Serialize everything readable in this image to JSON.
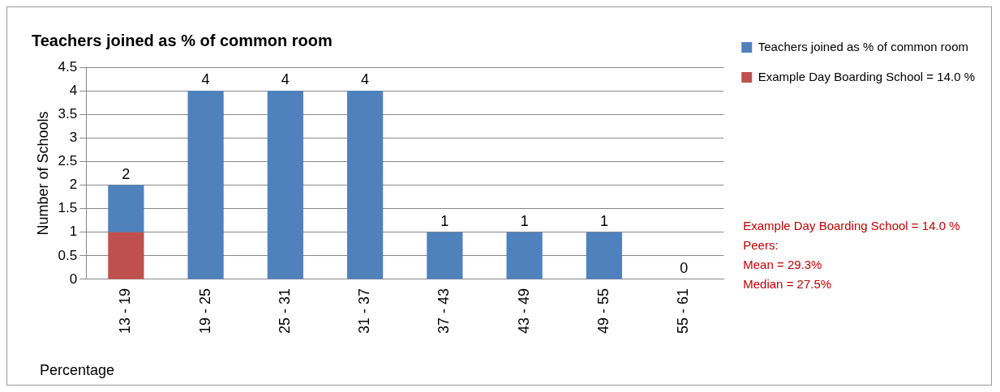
{
  "chart_data": {
    "type": "bar",
    "title": "Teachers joined as % of common room",
    "xlabel": "Percentage",
    "ylabel": "Number of Schools",
    "categories": [
      "13 - 19",
      "19 - 25",
      "25 - 31",
      "31 - 37",
      "37 - 43",
      "43 - 49",
      "49 - 55",
      "55 - 61"
    ],
    "series": [
      {
        "name": "Example Day Boarding School = 14.0 %",
        "color": "#c0504d",
        "values": [
          1,
          0,
          0,
          0,
          0,
          0,
          0,
          0
        ]
      },
      {
        "name": "Teachers joined as % of common room",
        "color": "#4f81bd",
        "values": [
          1,
          4,
          4,
          4,
          1,
          1,
          1,
          0
        ]
      }
    ],
    "stacked": true,
    "totals": [
      "2",
      "4",
      "4",
      "4",
      "1",
      "1",
      "1",
      "0"
    ],
    "ylim": [
      0,
      4.5
    ],
    "yticks": [
      0,
      0.5,
      1,
      1.5,
      2,
      2.5,
      3,
      3.5,
      4,
      4.5
    ],
    "grid": "y",
    "legend": "top right",
    "annotations": [
      "Example Day Boarding School = 14.0 %",
      "Peers:",
      "Mean = 29.3%",
      "Median = 27.5%"
    ]
  }
}
